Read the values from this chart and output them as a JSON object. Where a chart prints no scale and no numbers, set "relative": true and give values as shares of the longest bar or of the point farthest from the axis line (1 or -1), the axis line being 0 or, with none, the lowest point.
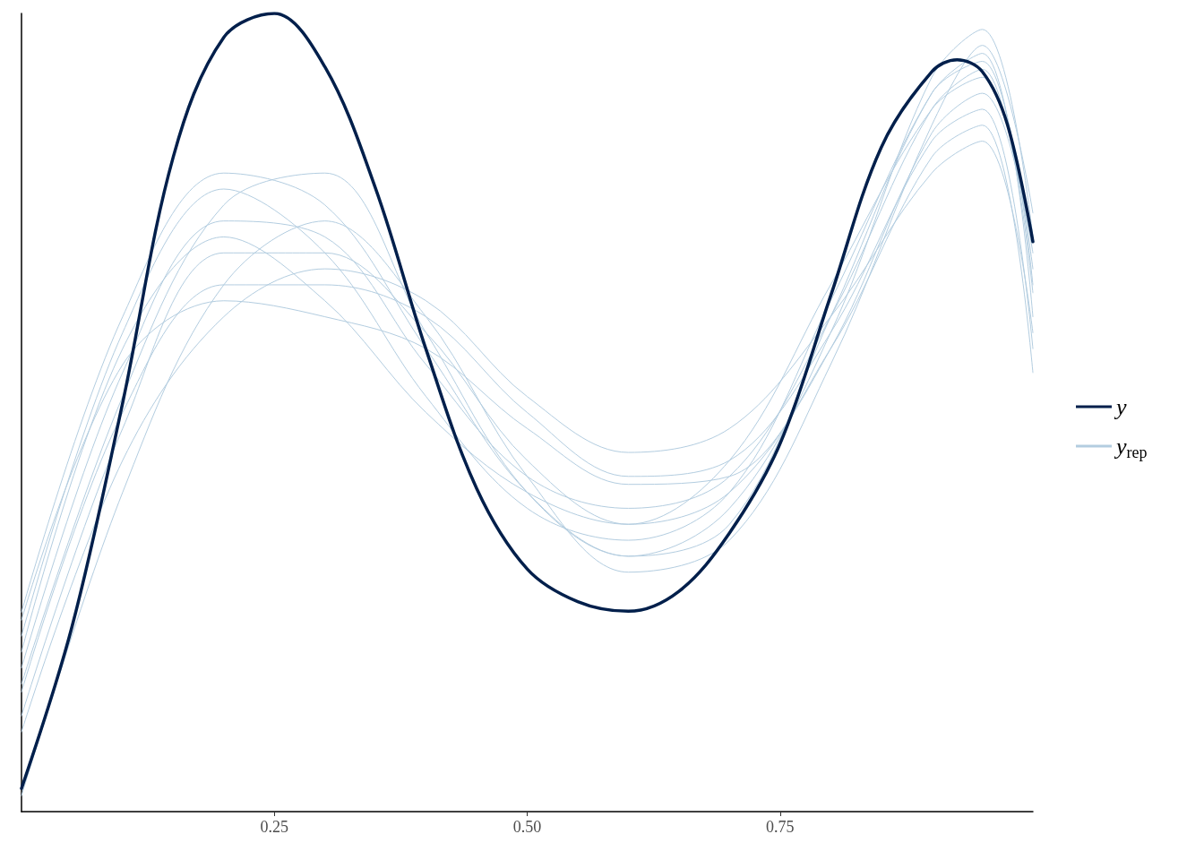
{
  "chart_data": {
    "type": "line",
    "relative": true,
    "legend": "right",
    "grid": false,
    "marker": "none",
    "line_style": "solid",
    "xlim": [
      0,
      1
    ],
    "xticks": [
      0.25,
      {
        "value": 0.5,
        "label": "0.50"
      },
      0.75
    ],
    "series": [
      {
        "name": "y",
        "color": "#011f4b",
        "x": [
          0,
          0.05,
          0.1,
          0.15,
          0.2,
          0.25,
          0.3,
          0.35,
          0.4,
          0.45,
          0.5,
          0.55,
          0.6,
          0.65,
          0.7,
          0.75,
          0.8,
          0.85,
          0.9,
          0.925,
          0.95,
          0.975,
          1.0
        ],
        "values": [
          0.029,
          0.232,
          0.512,
          0.82,
          0.97,
          1.0,
          0.933,
          0.781,
          0.579,
          0.405,
          0.304,
          0.263,
          0.251,
          0.276,
          0.349,
          0.461,
          0.646,
          0.832,
          0.927,
          0.942,
          0.927,
          0.86,
          0.714
        ]
      },
      {
        "name": "y$_{rep}$",
        "color": "#b3cde0",
        "x": [
          0,
          0.1,
          0.2,
          0.3,
          0.4,
          0.5,
          0.6,
          0.7,
          0.8,
          0.9,
          0.95,
          1.0
        ],
        "values": [
          0.18,
          0.55,
          0.74,
          0.72,
          0.56,
          0.42,
          0.38,
          0.42,
          0.62,
          0.88,
          0.93,
          0.65
        ]
      },
      {
        "color": "#b3cde0",
        "x": [
          0,
          0.1,
          0.2,
          0.3,
          0.4,
          0.5,
          0.6,
          0.7,
          0.8,
          0.9,
          0.95,
          1.0
        ],
        "values": [
          0.12,
          0.48,
          0.7,
          0.7,
          0.6,
          0.44,
          0.36,
          0.4,
          0.58,
          0.85,
          0.9,
          0.7
        ]
      },
      {
        "color": "#b3cde0",
        "x": [
          0,
          0.1,
          0.2,
          0.3,
          0.4,
          0.5,
          0.6,
          0.7,
          0.8,
          0.9,
          0.95,
          1.0
        ],
        "values": [
          0.22,
          0.6,
          0.78,
          0.7,
          0.52,
          0.38,
          0.34,
          0.4,
          0.64,
          0.9,
          0.95,
          0.62
        ]
      },
      {
        "color": "#b3cde0",
        "x": [
          0,
          0.1,
          0.2,
          0.3,
          0.4,
          0.5,
          0.6,
          0.7,
          0.8,
          0.9,
          0.95,
          1.0
        ],
        "values": [
          0.15,
          0.5,
          0.66,
          0.66,
          0.62,
          0.5,
          0.42,
          0.44,
          0.6,
          0.84,
          0.88,
          0.58
        ]
      },
      {
        "color": "#b3cde0",
        "x": [
          0,
          0.1,
          0.2,
          0.3,
          0.4,
          0.5,
          0.6,
          0.7,
          0.8,
          0.9,
          0.95,
          1.0
        ],
        "values": [
          0.25,
          0.62,
          0.8,
          0.76,
          0.58,
          0.4,
          0.32,
          0.38,
          0.6,
          0.92,
          0.98,
          0.72
        ]
      },
      {
        "color": "#b3cde0",
        "x": [
          0,
          0.1,
          0.2,
          0.3,
          0.4,
          0.5,
          0.6,
          0.7,
          0.8,
          0.9,
          0.95,
          1.0
        ],
        "values": [
          0.1,
          0.44,
          0.62,
          0.68,
          0.64,
          0.52,
          0.45,
          0.48,
          0.62,
          0.8,
          0.84,
          0.6
        ]
      },
      {
        "color": "#b3cde0",
        "x": [
          0,
          0.1,
          0.2,
          0.3,
          0.4,
          0.5,
          0.6,
          0.7,
          0.8,
          0.9,
          0.95,
          1.0
        ],
        "values": [
          0.2,
          0.58,
          0.72,
          0.64,
          0.5,
          0.4,
          0.36,
          0.44,
          0.66,
          0.88,
          0.92,
          0.68
        ]
      },
      {
        "color": "#b3cde0",
        "x": [
          0,
          0.1,
          0.2,
          0.3,
          0.4,
          0.5,
          0.6,
          0.7,
          0.8,
          0.9,
          0.95,
          1.0
        ],
        "values": [
          0.02,
          0.4,
          0.66,
          0.74,
          0.62,
          0.42,
          0.3,
          0.34,
          0.56,
          0.86,
          0.96,
          0.75
        ]
      },
      {
        "color": "#b3cde0",
        "x": [
          0,
          0.1,
          0.2,
          0.3,
          0.4,
          0.5,
          0.6,
          0.7,
          0.8,
          0.9,
          0.95,
          1.0
        ],
        "values": [
          0.24,
          0.56,
          0.64,
          0.62,
          0.58,
          0.48,
          0.41,
          0.42,
          0.58,
          0.82,
          0.86,
          0.55
        ]
      },
      {
        "color": "#b3cde0",
        "x": [
          0,
          0.1,
          0.2,
          0.3,
          0.4,
          0.5,
          0.6,
          0.7,
          0.8,
          0.9,
          0.95,
          1.0
        ],
        "values": [
          0.16,
          0.52,
          0.76,
          0.8,
          0.6,
          0.4,
          0.32,
          0.36,
          0.62,
          0.9,
          0.94,
          0.66
        ]
      }
    ]
  }
}
